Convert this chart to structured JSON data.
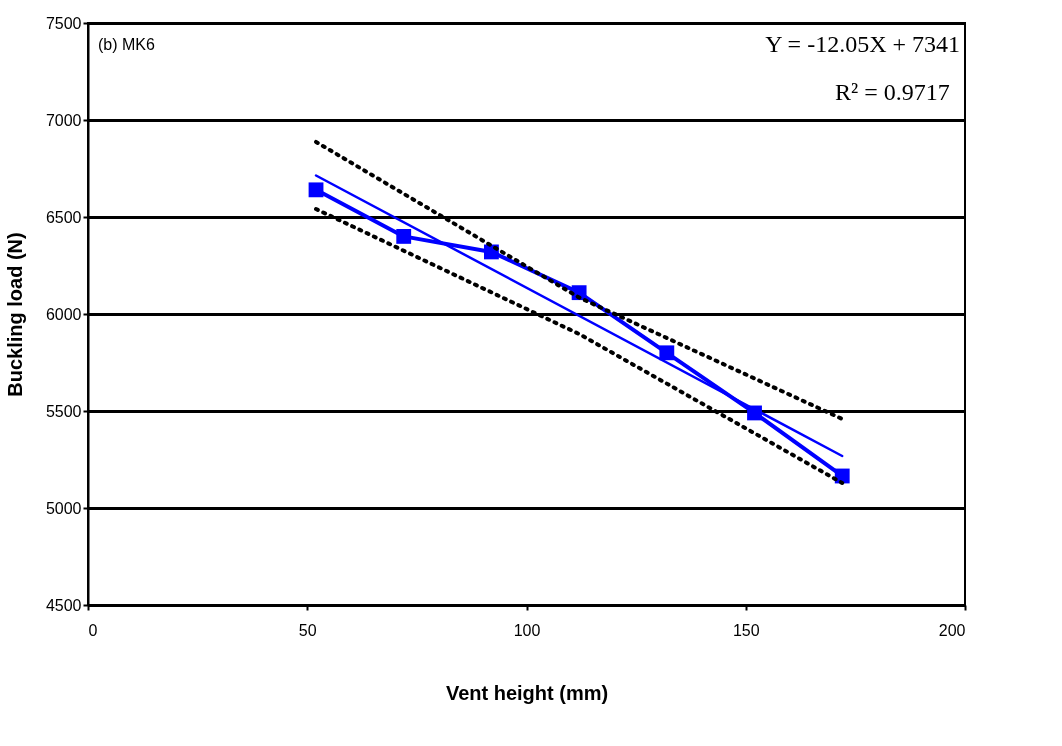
{
  "chart_data": {
    "type": "line",
    "xlabel": "Vent height (mm)",
    "ylabel": "Buckling load (N)",
    "x": [
      52,
      72,
      92,
      112,
      132,
      152,
      172
    ],
    "series": [
      {
        "color": "#0000ff",
        "values": [
          6640,
          6400,
          6320,
          6110,
          5800,
          5490,
          5165
        ],
        "marker": "square",
        "line_style": "solid"
      },
      {
        "color": "#0000ff",
        "x": [
          52,
          172
        ],
        "values": [
          6714,
          5268
        ],
        "marker": "none",
        "line_style": "solid"
      },
      {
        "color": "#000000",
        "x": [
          52,
          112,
          172
        ],
        "values": [
          6887,
          6085,
          5459
        ],
        "marker": "none",
        "line_style": "dotted"
      },
      {
        "color": "#000000",
        "x": [
          52,
          112,
          172
        ],
        "values": [
          6541,
          5897,
          5129
        ],
        "marker": "none",
        "line_style": "dotted"
      }
    ],
    "xlim": [
      0,
      200
    ],
    "xticks": [
      0,
      50,
      100,
      150,
      200
    ],
    "ylim": [
      4500,
      7500
    ],
    "yticks": [
      4500,
      5000,
      5500,
      6000,
      6500,
      7000,
      7500
    ],
    "grid": "y",
    "annotations": [
      "(b)  MK6",
      "Y = -12.05X + 7341",
      "R² = 0.9717"
    ]
  }
}
